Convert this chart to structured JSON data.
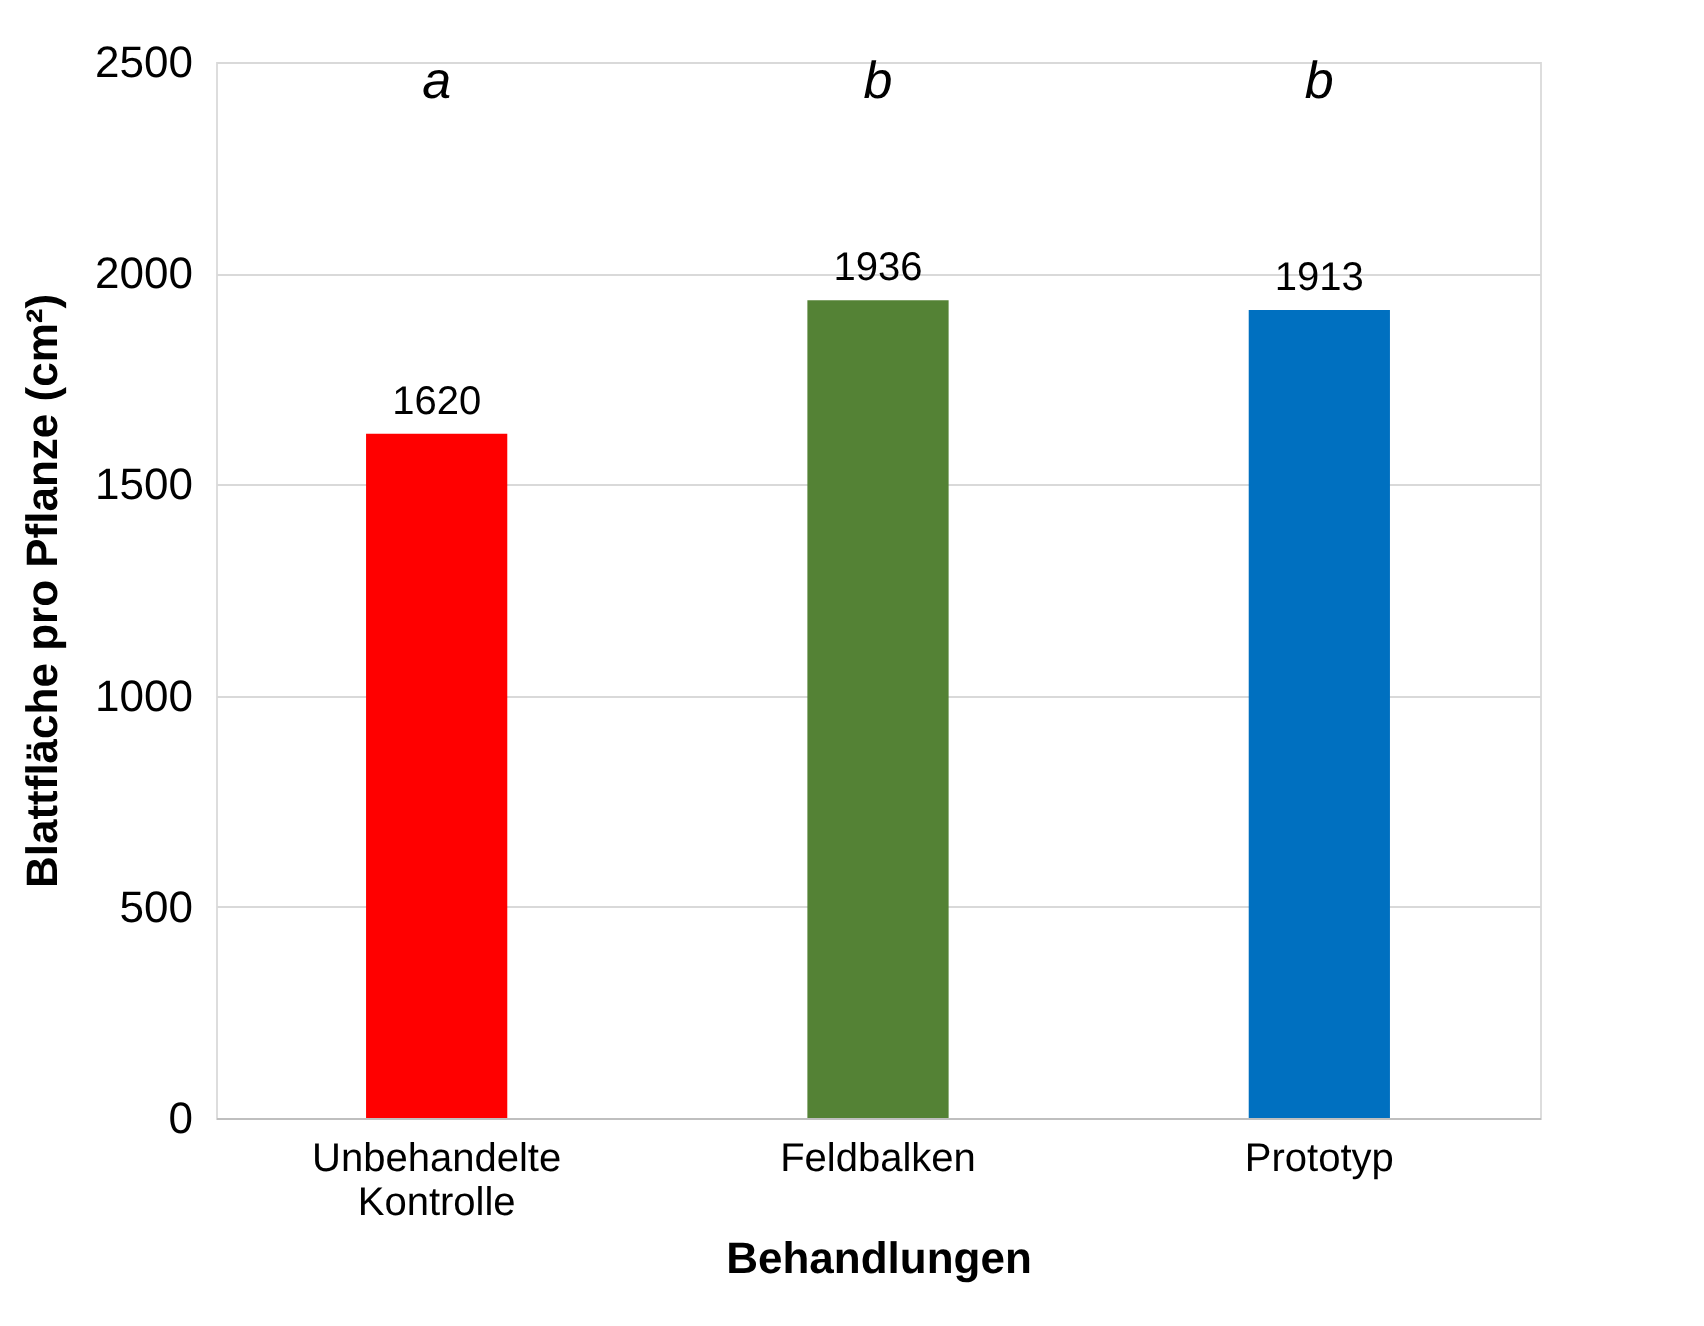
{
  "chart_data": {
    "type": "bar",
    "categories": [
      "Unbehandelte Kontrolle",
      "Feldbalken",
      "Prototyp"
    ],
    "values": [
      1620,
      1936,
      1913
    ],
    "colors": [
      "#ff0000",
      "#548235",
      "#0070c0"
    ],
    "xlabel": "Behandlungen",
    "ylabel": "Blattfläche pro Pflanze (cm²)",
    "ylim": [
      0,
      2500
    ],
    "yticks": [
      0,
      500,
      1000,
      1500,
      2000,
      2500
    ],
    "grid": "y",
    "data_labels": true,
    "annotations": [
      "a",
      "b",
      "b"
    ]
  }
}
